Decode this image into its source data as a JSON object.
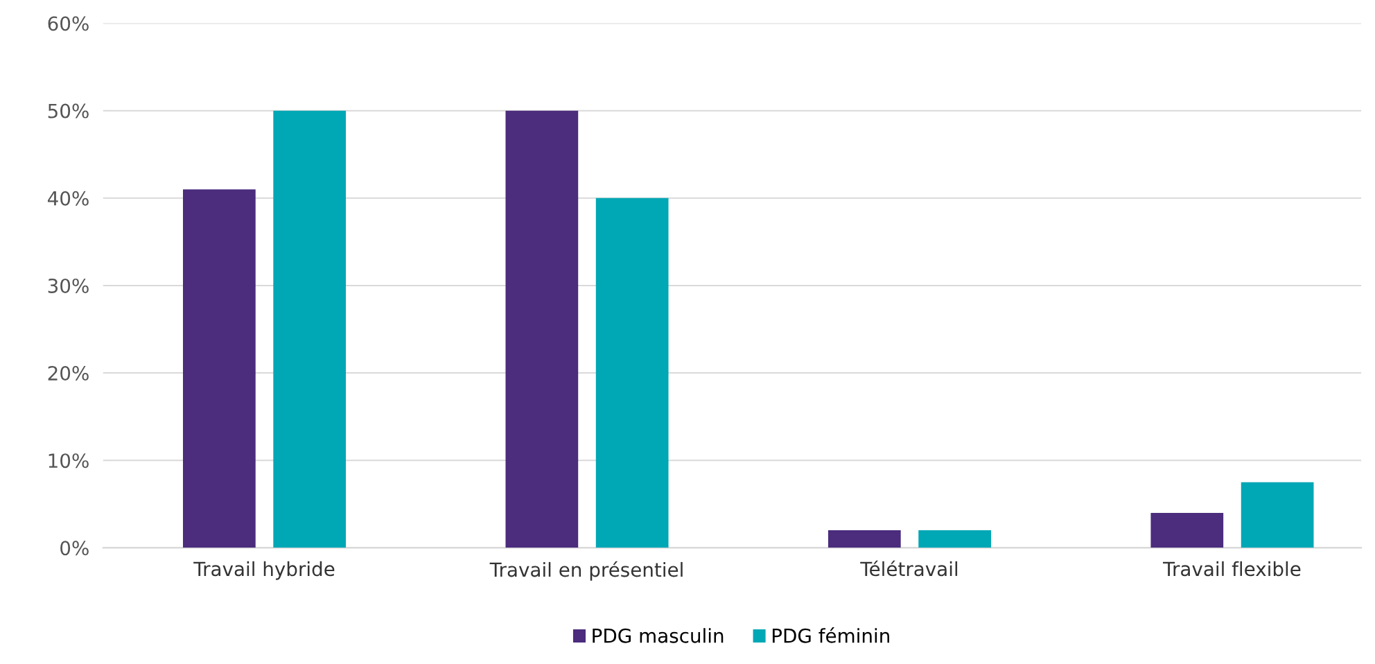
{
  "chart_data": {
    "type": "bar",
    "categories": [
      "Travail hybride",
      "Travail en présentiel",
      "Télétravail",
      "Travail flexible"
    ],
    "series": [
      {
        "name": "PDG masculin",
        "color": "#4b2c7d",
        "values": [
          41,
          50,
          2,
          4
        ]
      },
      {
        "name": "PDG féminin",
        "color": "#00a7b5",
        "values": [
          50,
          40,
          2,
          7.5
        ]
      }
    ],
    "ylim": [
      0,
      60
    ],
    "yticks": [
      {
        "value": 0,
        "label": "0%"
      },
      {
        "value": 10,
        "label": "10%"
      },
      {
        "value": 20,
        "label": "20%"
      },
      {
        "value": 30,
        "label": "30%"
      },
      {
        "value": 40,
        "label": "40%"
      },
      {
        "value": 50,
        "label": "50%"
      },
      {
        "value": 60,
        "label": "60%"
      }
    ],
    "grid": "y",
    "legend": "bottom"
  }
}
